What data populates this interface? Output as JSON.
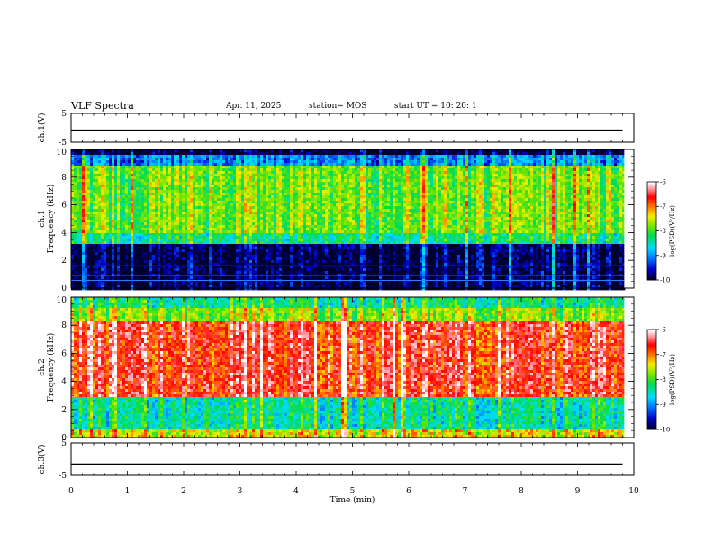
{
  "header": {
    "title": "VLF Spectra",
    "date": "Apr. 11, 2025",
    "station": "station= MOS",
    "start": "start  UT  =    10: 20: 1"
  },
  "chart_data": [
    {
      "type": "line",
      "panel": "ch1-voltage",
      "ylabel": "ch.1(V)",
      "ylim": [
        -5,
        5
      ],
      "y_ticks": [
        "5",
        "-5"
      ],
      "series": [
        {
          "x": [
            0,
            9.8
          ],
          "y": [
            -0.8,
            -0.8
          ]
        }
      ]
    },
    {
      "type": "heatmap",
      "panel": "ch1-spectrogram",
      "ylabel": "ch.1\nFrequency (kHz)",
      "ylim": [
        0,
        10
      ],
      "y_ticks": [
        "0",
        "2",
        "4",
        "6",
        "8",
        "10"
      ],
      "colorbar": {
        "label": "log(PSD)(V²/Hz)",
        "ticks": [
          "-6",
          "-7",
          "-8",
          "-9",
          "-10"
        ],
        "range": [
          -10,
          -6
        ]
      },
      "bands": [
        {
          "from_khz": 0,
          "to_khz": 3.2,
          "level": -9.9
        },
        {
          "from_khz": 3.2,
          "to_khz": 4.0,
          "level": -8.3
        },
        {
          "from_khz": 4.0,
          "to_khz": 8.8,
          "level": -7.8
        },
        {
          "from_khz": 8.8,
          "to_khz": 9.6,
          "level": -9.0
        },
        {
          "from_khz": 9.6,
          "to_khz": 10,
          "level": -10.0
        }
      ]
    },
    {
      "type": "heatmap",
      "panel": "ch2-spectrogram",
      "ylabel": "ch.2\nFrequency (kHz)",
      "ylim": [
        0,
        10
      ],
      "y_ticks": [
        "0",
        "2",
        "4",
        "6",
        "8",
        "10"
      ],
      "colorbar": {
        "label": "log(PSD)(V²/Hz)",
        "ticks": [
          "-6",
          "-7",
          "-8",
          "-9",
          "-10"
        ],
        "range": [
          -10,
          -6
        ]
      },
      "bands": [
        {
          "from_khz": 0,
          "to_khz": 0.5,
          "level": -7.4
        },
        {
          "from_khz": 0.5,
          "to_khz": 2.8,
          "level": -8.4
        },
        {
          "from_khz": 2.8,
          "to_khz": 8.2,
          "level": -6.6
        },
        {
          "from_khz": 8.2,
          "to_khz": 9.2,
          "level": -7.7
        },
        {
          "from_khz": 9.2,
          "to_khz": 10,
          "level": -8.3
        }
      ]
    },
    {
      "type": "line",
      "panel": "ch3-voltage",
      "ylabel": "ch.3(V)",
      "ylim": [
        -5,
        5
      ],
      "y_ticks": [
        "5",
        "-5"
      ],
      "series": [
        {
          "x": [
            0,
            9.8
          ],
          "y": [
            -1.5,
            -1.5
          ]
        }
      ]
    }
  ],
  "x_axis": {
    "label": "Time  (min)",
    "xlim": [
      0,
      10
    ],
    "ticks": [
      "0",
      "1",
      "2",
      "3",
      "4",
      "5",
      "6",
      "7",
      "8",
      "9",
      "10"
    ]
  }
}
